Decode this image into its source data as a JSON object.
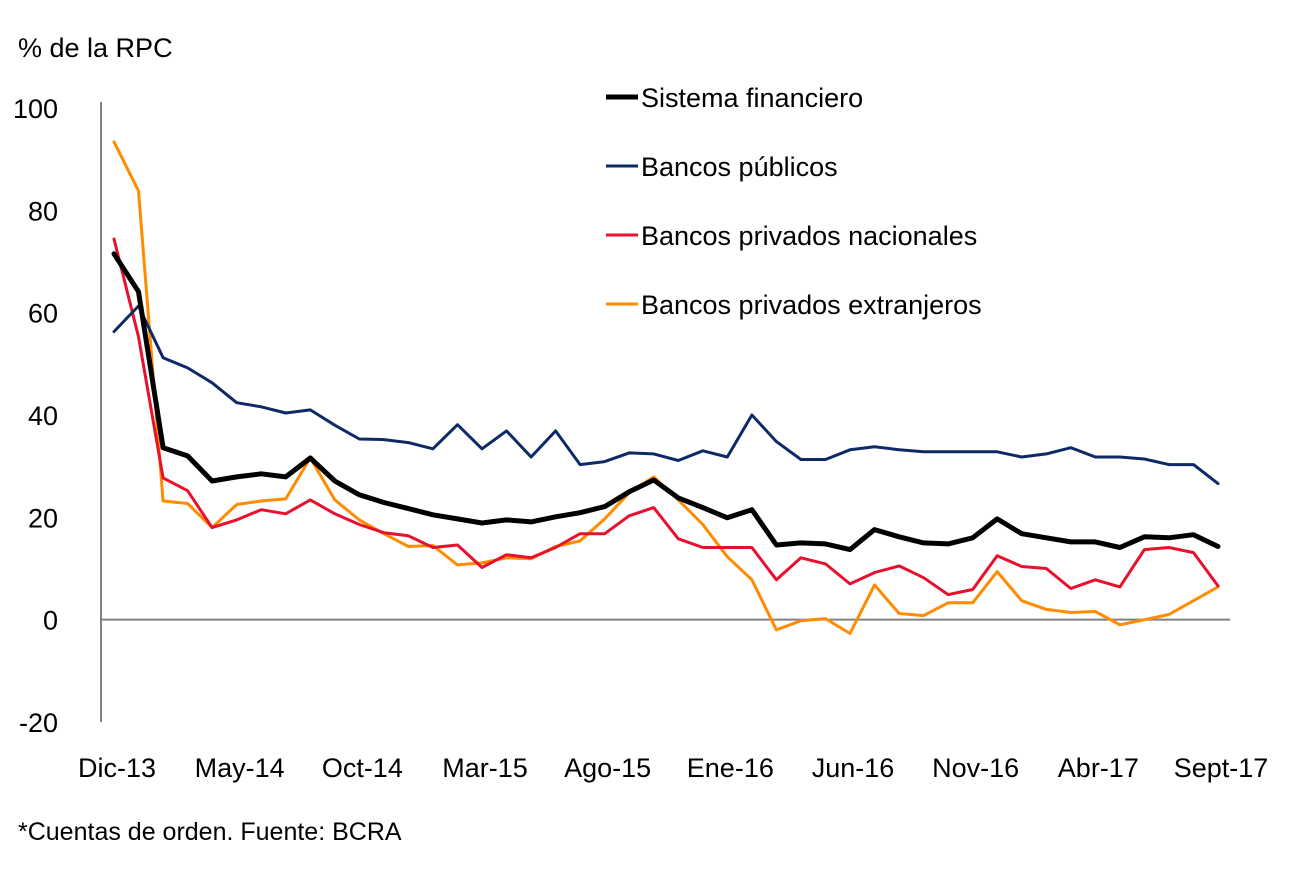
{
  "chart_data": {
    "type": "line",
    "title": "",
    "ylabel": "% de la RPC",
    "xlabel": "",
    "ylim": [
      -20,
      100
    ],
    "yticks": [
      -20,
      0,
      20,
      40,
      60,
      80,
      100
    ],
    "ytick_labels": [
      "-20",
      "0",
      "20",
      "40",
      "60",
      "80",
      "100"
    ],
    "grid": false,
    "zero_line": true,
    "legend_position": "top-right",
    "x": [
      "Dic-13",
      "Ene-14",
      "Feb-14",
      "Mar-14",
      "Abr-14",
      "May-14",
      "Jun-14",
      "Jul-14",
      "Ago-14",
      "Sep-14",
      "Oct-14",
      "Nov-14",
      "Dic-14",
      "Ene-15",
      "Feb-15",
      "Mar-15",
      "Abr-15",
      "May-15",
      "Jun-15",
      "Jul-15",
      "Ago-15",
      "Sep-15",
      "Oct-15",
      "Nov-15",
      "Dic-15",
      "Ene-16",
      "Feb-16",
      "Mar-16",
      "Abr-16",
      "May-16",
      "Jun-16",
      "Jul-16",
      "Ago-16",
      "Sep-16",
      "Oct-16",
      "Nov-16",
      "Dic-16",
      "Ene-17",
      "Feb-17",
      "Mar-17",
      "Abr-17",
      "May-17",
      "Jun-17",
      "Jul-17",
      "Ago-17",
      "Sept-17"
    ],
    "xtick_labels": [
      {
        "index": 0,
        "label": "Dic-13"
      },
      {
        "index": 5,
        "label": "May-14"
      },
      {
        "index": 10,
        "label": "Oct-14"
      },
      {
        "index": 15,
        "label": "Mar-15"
      },
      {
        "index": 20,
        "label": "Ago-15"
      },
      {
        "index": 25,
        "label": "Ene-16"
      },
      {
        "index": 30,
        "label": "Jun-16"
      },
      {
        "index": 35,
        "label": "Nov-16"
      },
      {
        "index": 40,
        "label": "Abr-17"
      },
      {
        "index": 45,
        "label": "Sept-17"
      }
    ],
    "series": [
      {
        "name": "Sistema financiero",
        "color": "#000000",
        "bold": true,
        "values": [
          71.5,
          64.1,
          33.6,
          32.0,
          27.1,
          27.9,
          28.5,
          27.9,
          31.6,
          27.1,
          24.4,
          22.9,
          21.7,
          20.5,
          19.7,
          18.9,
          19.5,
          19.1,
          20.1,
          20.9,
          22.1,
          25.0,
          27.3,
          23.8,
          21.9,
          19.9,
          21.5,
          14.6,
          15.0,
          14.8,
          13.7,
          17.6,
          16.2,
          15.0,
          14.8,
          16.0,
          19.7,
          16.8,
          16.0,
          15.2,
          15.2,
          14.1,
          16.2,
          16.0,
          16.6,
          14.3
        ]
      },
      {
        "name": "Bancos públicos",
        "color": "#0E2A66",
        "bold": false,
        "values": [
          56.3,
          61.3,
          51.2,
          49.2,
          46.3,
          42.4,
          41.6,
          40.4,
          41.0,
          38.0,
          35.3,
          35.2,
          34.6,
          33.4,
          38.1,
          33.4,
          36.9,
          31.8,
          36.9,
          30.3,
          30.9,
          32.6,
          32.4,
          31.1,
          33.0,
          31.8,
          40.0,
          34.8,
          31.3,
          31.3,
          33.2,
          33.8,
          33.2,
          32.8,
          32.8,
          32.8,
          32.8,
          31.8,
          32.4,
          33.6,
          31.8,
          31.8,
          31.4,
          30.3,
          30.3,
          26.6
        ]
      },
      {
        "name": "Bancos privados nacionales",
        "color": "#E8112D",
        "bold": false,
        "values": [
          74.4,
          55.3,
          27.7,
          25.2,
          18.0,
          19.5,
          21.5,
          20.7,
          23.4,
          20.7,
          18.6,
          17.0,
          16.4,
          14.1,
          14.6,
          10.2,
          12.7,
          12.1,
          14.1,
          16.8,
          16.8,
          20.3,
          21.9,
          15.8,
          14.1,
          14.1,
          14.1,
          7.8,
          12.1,
          10.9,
          7.0,
          9.2,
          10.5,
          8.2,
          4.9,
          5.9,
          12.5,
          10.4,
          10.0,
          6.1,
          7.8,
          6.4,
          13.7,
          14.1,
          13.1,
          6.6
        ]
      },
      {
        "name": "Bancos privados extranjeros",
        "color": "#FF8C00",
        "bold": false,
        "values": [
          93.4,
          83.8,
          23.2,
          22.7,
          18.0,
          22.5,
          23.2,
          23.6,
          31.6,
          23.4,
          19.5,
          16.8,
          14.3,
          14.5,
          10.7,
          11.1,
          12.1,
          11.9,
          14.3,
          15.4,
          19.7,
          24.8,
          27.9,
          23.4,
          18.6,
          12.3,
          7.8,
          -2.0,
          -0.2,
          0.2,
          -2.7,
          6.8,
          1.2,
          0.8,
          3.3,
          3.3,
          9.4,
          3.7,
          2.0,
          1.4,
          1.6,
          -1.0,
          0.0,
          1.0,
          3.7,
          6.4
        ]
      }
    ],
    "footnote": "*Cuentas de orden. Fuente: BCRA"
  }
}
